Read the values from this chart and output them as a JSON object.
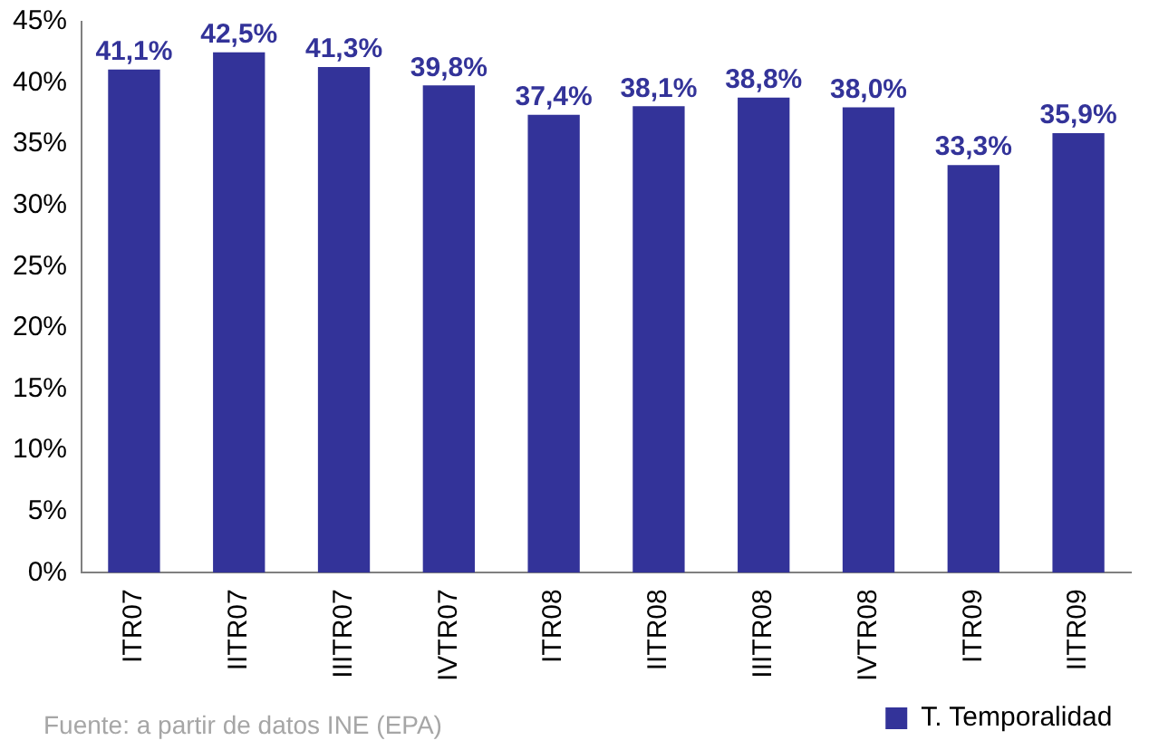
{
  "chart_data": {
    "type": "bar",
    "categories": [
      "ITR07",
      "IITR07",
      "IIITR07",
      "IVTR07",
      "ITR08",
      "IITR08",
      "IIITR08",
      "IVTR08",
      "ITR09",
      "IITR09"
    ],
    "series": [
      {
        "name": "T. Temporalidad",
        "color": "#333399",
        "values": [
          41.1,
          42.5,
          41.3,
          39.8,
          37.4,
          38.1,
          38.8,
          38.0,
          33.3,
          35.9
        ],
        "value_labels": [
          "41,1%",
          "42,5%",
          "41,3%",
          "39,8%",
          "37,4%",
          "38,1%",
          "38,8%",
          "38,0%",
          "33,3%",
          "35,9%"
        ]
      }
    ],
    "ylim": [
      0,
      45
    ],
    "yticks": [
      {
        "value": 0,
        "label": "0%"
      },
      {
        "value": 5,
        "label": "5%"
      },
      {
        "value": 10,
        "label": "10%"
      },
      {
        "value": 15,
        "label": "15%"
      },
      {
        "value": 20,
        "label": "20%"
      },
      {
        "value": 25,
        "label": "25%"
      },
      {
        "value": 30,
        "label": "30%"
      },
      {
        "value": 35,
        "label": "35%"
      },
      {
        "value": 40,
        "label": "40%"
      },
      {
        "value": 45,
        "label": "45%"
      }
    ],
    "grid": false,
    "legend": "bottom right",
    "annotations": [
      "Fuente: a partir de datos INE (EPA)"
    ]
  }
}
